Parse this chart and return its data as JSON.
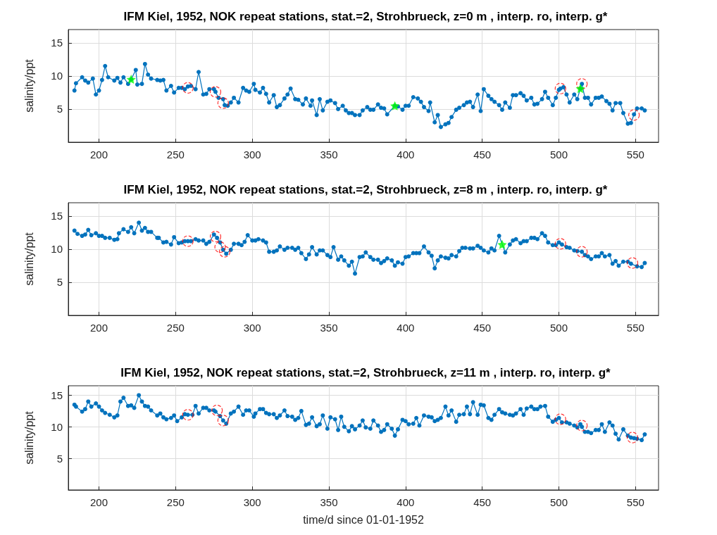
{
  "chart_data": [
    {
      "type": "line",
      "title": "IFM Kiel, 1952, NOK repeat stations, stat.=2, Strohbrueck, z=0 m , interp. ro, interp. g*",
      "ylabel": "salinity/ppt",
      "xlim": [
        180,
        565
      ],
      "xticks": [
        200,
        250,
        300,
        350,
        400,
        450,
        500,
        550
      ],
      "ylim": [
        0,
        17
      ],
      "yticks": [
        5,
        10,
        15
      ],
      "grid": true,
      "series": [
        {
          "color": "#0072bd",
          "marker": "circle",
          "x": [
            184,
            185,
            189,
            191,
            193,
            196,
            198,
            200,
            202,
            204,
            206,
            210,
            212,
            214,
            216,
            219,
            221,
            224,
            225,
            228,
            230,
            232,
            234,
            238,
            240,
            242,
            244,
            247,
            249,
            252,
            254,
            256,
            258,
            260,
            263,
            265,
            268,
            270,
            272,
            275,
            276,
            278,
            281,
            282,
            284,
            286,
            288,
            291,
            294,
            296,
            298,
            301,
            302,
            305,
            307,
            309,
            311,
            314,
            316,
            318,
            321,
            323,
            325,
            328,
            330,
            333,
            335,
            338,
            339,
            342,
            344,
            346,
            349,
            351,
            354,
            356,
            359,
            361,
            363,
            365,
            367,
            370,
            372,
            375,
            377,
            379,
            382,
            384,
            386,
            388,
            393,
            395,
            398,
            400,
            402,
            405,
            408,
            410,
            412,
            415,
            416,
            419,
            421,
            423,
            426,
            428,
            430,
            433,
            435,
            438,
            440,
            442,
            444,
            447,
            449,
            451,
            454,
            456,
            458,
            461,
            463,
            465,
            468,
            470,
            472,
            475,
            477,
            479,
            482,
            484,
            486,
            489,
            491,
            493,
            496,
            498,
            500,
            501,
            503,
            505,
            507,
            510,
            512,
            514,
            515,
            517,
            519,
            521,
            524,
            526,
            528,
            531,
            533,
            535,
            537,
            540,
            542,
            545,
            547,
            549,
            551,
            554,
            556
          ],
          "values": [
            7.8,
            8.9,
            9.8,
            9.3,
            9.0,
            9.6,
            7.2,
            7.8,
            9.4,
            11.5,
            9.8,
            9.3,
            9.7,
            9.0,
            9.8,
            8.8,
            9.5,
            10.9,
            8.7,
            8.8,
            11.8,
            10.2,
            9.6,
            9.4,
            9.3,
            9.4,
            7.8,
            8.5,
            7.5,
            8.2,
            8.2,
            8.0,
            8.4,
            8.5,
            8.0,
            10.6,
            7.2,
            7.3,
            8.0,
            8.0,
            7.6,
            6.7,
            6.5,
            5.6,
            5.5,
            6.0,
            6.7,
            6.0,
            8.2,
            7.8,
            7.6,
            8.8,
            7.9,
            7.5,
            8.2,
            7.3,
            6.0,
            7.1,
            5.3,
            5.6,
            6.6,
            7.2,
            8.1,
            6.5,
            6.4,
            5.7,
            6.6,
            5.5,
            6.3,
            4.1,
            6.5,
            4.8,
            6.1,
            6.3,
            5.9,
            5.0,
            5.5,
            4.8,
            4.4,
            4.4,
            4.1,
            4.1,
            4.8,
            5.3,
            4.9,
            4.9,
            5.7,
            5.2,
            5.1,
            4.2,
            5.5,
            5.4,
            4.9,
            5.5,
            5.5,
            6.8,
            6.6,
            6.1,
            5.3,
            4.7,
            6.0,
            3.0,
            4.1,
            2.3,
            2.7,
            2.9,
            3.8,
            4.9,
            5.2,
            5.6,
            6.0,
            6.1,
            5.3,
            7.2,
            4.7,
            8.0,
            7.0,
            6.5,
            6.1,
            5.6,
            4.9,
            6.0,
            5.2,
            7.1,
            7.1,
            7.4,
            7.0,
            6.3,
            6.7,
            5.7,
            5.8,
            6.5,
            7.6,
            6.7,
            5.6,
            6.7,
            7.9,
            8.1,
            8.3,
            7.2,
            6.0,
            7.2,
            6.5,
            8.1,
            8.8,
            6.7,
            6.7,
            5.7,
            6.7,
            6.7,
            6.9,
            6.2,
            5.8,
            4.8,
            5.9,
            5.9,
            4.4,
            2.8,
            2.9,
            4.2,
            5.1,
            5.1,
            4.8
          ]
        },
        {
          "type": "scatter",
          "color": "#ff0000",
          "marker": "circle",
          "line_style": "dashed",
          "x": [
            258,
            276,
            281,
            501,
            515,
            549
          ],
          "values": [
            8.2,
            7.6,
            5.9,
            8.1,
            8.8,
            4.1
          ]
        },
        {
          "type": "scatter",
          "color": "#00ff00",
          "marker": "star",
          "x": [
            221,
            393,
            514
          ],
          "values": [
            9.5,
            5.5,
            8.1
          ]
        }
      ]
    },
    {
      "type": "line",
      "title": "IFM Kiel, 1952, NOK repeat stations, stat.=2, Strohbrueck, z=8 m , interp. ro, interp. g*",
      "ylabel": "salinity/ppt",
      "xlim": [
        180,
        565
      ],
      "xticks": [
        200,
        250,
        300,
        350,
        400,
        450,
        500,
        550
      ],
      "ylim": [
        0,
        17
      ],
      "yticks": [
        5,
        10,
        15
      ],
      "grid": true,
      "series": [
        {
          "color": "#0072bd",
          "marker": "circle",
          "x": [
            184,
            186,
            189,
            191,
            193,
            195,
            198,
            200,
            202,
            204,
            207,
            210,
            212,
            213,
            216,
            219,
            221,
            223,
            226,
            228,
            230,
            232,
            234,
            238,
            239,
            242,
            244,
            247,
            249,
            252,
            254,
            256,
            258,
            260,
            263,
            265,
            268,
            270,
            272,
            275,
            277,
            279,
            281,
            283,
            286,
            288,
            291,
            293,
            295,
            297,
            300,
            302,
            304,
            307,
            309,
            311,
            314,
            316,
            318,
            321,
            323,
            326,
            328,
            330,
            332,
            335,
            337,
            339,
            342,
            344,
            346,
            349,
            351,
            353,
            356,
            358,
            360,
            363,
            365,
            367,
            370,
            372,
            374,
            377,
            379,
            382,
            384,
            386,
            388,
            391,
            393,
            395,
            398,
            400,
            402,
            405,
            407,
            409,
            412,
            415,
            417,
            419,
            421,
            423,
            426,
            428,
            430,
            433,
            435,
            437,
            439,
            442,
            444,
            447,
            449,
            451,
            454,
            456,
            458,
            461,
            465,
            468,
            470,
            472,
            475,
            477,
            479,
            482,
            484,
            486,
            489,
            491,
            493,
            496,
            498,
            500,
            502,
            505,
            507,
            510,
            512,
            515,
            517,
            519,
            521,
            524,
            526,
            528,
            530,
            533,
            535,
            537,
            539,
            542,
            545,
            547,
            551,
            554,
            556
          ],
          "values": [
            12.8,
            12.3,
            12.0,
            12.2,
            12.9,
            12.1,
            12.4,
            12.0,
            12.0,
            11.7,
            11.7,
            11.4,
            11.5,
            12.4,
            13.0,
            12.6,
            13.3,
            12.4,
            14.0,
            12.8,
            13.2,
            12.6,
            12.6,
            11.7,
            11.7,
            11.0,
            11.1,
            10.7,
            11.8,
            10.9,
            11.0,
            11.2,
            11.2,
            11.2,
            11.5,
            11.3,
            11.3,
            10.8,
            11.1,
            12.2,
            11.7,
            11.0,
            9.9,
            9.3,
            9.9,
            10.8,
            10.8,
            10.6,
            11.1,
            12.1,
            11.3,
            11.3,
            11.5,
            11.3,
            11.0,
            9.6,
            9.6,
            9.8,
            10.4,
            9.9,
            10.2,
            10.2,
            9.9,
            10.2,
            9.4,
            8.5,
            9.2,
            10.3,
            9.2,
            9.8,
            9.8,
            9.1,
            8.8,
            10.3,
            8.4,
            8.9,
            8.3,
            7.5,
            8.1,
            6.3,
            8.8,
            8.9,
            9.5,
            8.8,
            8.4,
            8.4,
            7.9,
            8.2,
            8.6,
            8.3,
            7.5,
            8.0,
            7.8,
            8.8,
            8.9,
            9.4,
            9.4,
            9.4,
            10.4,
            9.5,
            9.0,
            7.1,
            8.3,
            8.9,
            8.7,
            8.6,
            9.1,
            8.9,
            9.7,
            10.2,
            10.2,
            10.1,
            10.1,
            10.5,
            10.2,
            9.8,
            9.5,
            10.1,
            9.8,
            12.0,
            9.5,
            10.7,
            11.3,
            11.5,
            10.9,
            11.2,
            11.2,
            11.7,
            11.7,
            11.5,
            12.4,
            12.0,
            11.0,
            10.6,
            10.6,
            11.0,
            10.7,
            10.3,
            10.2,
            9.8,
            9.7,
            9.6,
            9.1,
            8.9,
            8.5,
            8.9,
            8.9,
            9.4,
            8.9,
            9.1,
            7.8,
            8.2,
            7.5,
            8.1,
            8.1,
            7.8,
            7.4,
            7.3,
            7.9
          ]
        },
        {
          "type": "scatter",
          "color": "#ff0000",
          "marker": "circle",
          "line_style": "dashed",
          "x": [
            258,
            276,
            279,
            282,
            501,
            515,
            548
          ],
          "values": [
            11.2,
            11.9,
            10.3,
            9.6,
            10.8,
            9.6,
            7.9
          ]
        },
        {
          "type": "scatter",
          "color": "#00ff00",
          "marker": "star",
          "x": [
            463
          ],
          "values": [
            10.7
          ]
        }
      ]
    },
    {
      "type": "line",
      "title": "IFM Kiel, 1952, NOK repeat stations, stat.=2, Strohbrueck, z=11 m , interp. ro, interp. g*",
      "ylabel": "salinity/ppt",
      "xlabel": "time/d since 01-01-1952",
      "xlim": [
        180,
        565
      ],
      "xticks": [
        200,
        250,
        300,
        350,
        400,
        450,
        500,
        550
      ],
      "ylim": [
        0,
        16.5
      ],
      "yticks": [
        5,
        10,
        15
      ],
      "grid": true,
      "series": [
        {
          "color": "#0072bd",
          "marker": "circle",
          "x": [
            184,
            185,
            189,
            191,
            193,
            195,
            198,
            200,
            202,
            204,
            207,
            210,
            212,
            214,
            216,
            219,
            221,
            223,
            226,
            228,
            230,
            232,
            234,
            238,
            240,
            242,
            244,
            247,
            249,
            251,
            254,
            256,
            258,
            261,
            263,
            265,
            268,
            270,
            272,
            275,
            276,
            279,
            281,
            283,
            286,
            288,
            291,
            294,
            296,
            298,
            301,
            302,
            305,
            307,
            309,
            311,
            314,
            316,
            318,
            321,
            323,
            326,
            328,
            330,
            332,
            335,
            337,
            339,
            342,
            344,
            346,
            349,
            351,
            354,
            356,
            358,
            360,
            363,
            365,
            367,
            370,
            372,
            374,
            377,
            379,
            382,
            384,
            386,
            388,
            391,
            393,
            395,
            398,
            400,
            402,
            405,
            407,
            409,
            412,
            415,
            417,
            419,
            421,
            423,
            426,
            428,
            430,
            433,
            435,
            438,
            440,
            442,
            444,
            447,
            449,
            451,
            454,
            456,
            458,
            461,
            463,
            465,
            468,
            470,
            472,
            475,
            477,
            479,
            482,
            484,
            486,
            488,
            491,
            493,
            496,
            498,
            500,
            502,
            505,
            507,
            510,
            512,
            514,
            515,
            517,
            519,
            521,
            524,
            526,
            528,
            530,
            533,
            535,
            537,
            539,
            542,
            545,
            547,
            549,
            551,
            554,
            556
          ],
          "values": [
            13.5,
            13.2,
            12.4,
            12.8,
            14.0,
            13.2,
            13.7,
            13.2,
            12.6,
            12.2,
            11.9,
            11.5,
            11.8,
            14.0,
            14.6,
            13.3,
            13.4,
            13.0,
            15.0,
            14.0,
            13.3,
            13.2,
            12.6,
            11.8,
            12.1,
            11.5,
            11.2,
            11.4,
            11.8,
            10.9,
            11.5,
            12.0,
            11.9,
            11.9,
            13.3,
            12.1,
            13.0,
            13.0,
            12.6,
            12.6,
            12.4,
            11.7,
            11.0,
            10.5,
            12.1,
            12.4,
            13.2,
            11.9,
            12.6,
            12.6,
            11.6,
            12.1,
            12.8,
            12.8,
            12.2,
            12.0,
            12.0,
            11.4,
            11.8,
            12.6,
            11.7,
            11.6,
            11.1,
            11.4,
            12.5,
            10.3,
            10.5,
            11.5,
            10.1,
            10.4,
            11.8,
            9.7,
            11.5,
            11.2,
            9.5,
            11.6,
            10.0,
            9.3,
            10.1,
            9.6,
            10.2,
            11.0,
            9.9,
            9.7,
            11.0,
            10.2,
            9.2,
            9.5,
            10.4,
            9.7,
            8.6,
            9.6,
            11.1,
            10.9,
            10.4,
            10.5,
            11.4,
            10.2,
            11.8,
            11.6,
            11.5,
            10.9,
            11.1,
            11.4,
            13.2,
            11.8,
            12.6,
            10.8,
            11.9,
            12.0,
            13.2,
            12.0,
            13.9,
            11.9,
            13.5,
            13.4,
            11.4,
            11.1,
            11.9,
            12.8,
            12.3,
            12.1,
            11.9,
            11.8,
            12.1,
            12.8,
            11.9,
            12.9,
            13.2,
            12.8,
            12.8,
            13.2,
            13.3,
            11.6,
            10.8,
            11.1,
            11.4,
            10.7,
            10.7,
            10.5,
            10.2,
            9.9,
            10.4,
            10.0,
            9.2,
            9.2,
            9.0,
            9.5,
            9.5,
            10.4,
            9.2,
            10.7,
            10.2,
            8.9,
            8.0,
            9.6,
            8.6,
            8.3,
            8.2,
            8.1,
            7.9,
            8.8
          ]
        },
        {
          "type": "scatter",
          "color": "#ff0000",
          "marker": "circle",
          "line_style": "dashed",
          "x": [
            258,
            277,
            281,
            501,
            515,
            548
          ],
          "values": [
            11.9,
            12.6,
            11.0,
            11.2,
            10.2,
            8.3
          ]
        }
      ]
    }
  ]
}
